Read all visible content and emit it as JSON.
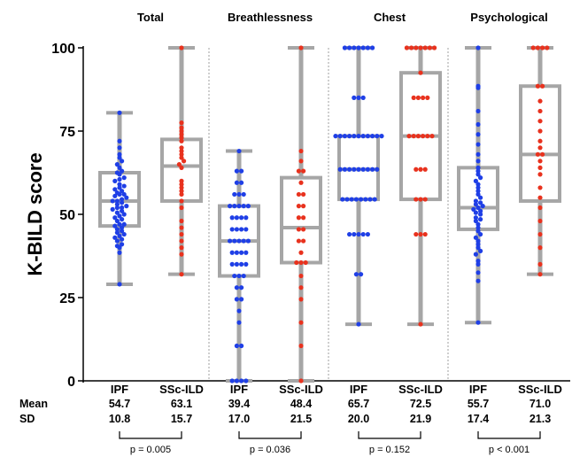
{
  "chart_data": {
    "type": "scatter",
    "subtype": "box-and-dot",
    "ylabel": "K-BILD score",
    "ylim": [
      0,
      100
    ],
    "yticks": [
      0,
      25,
      50,
      75,
      100
    ],
    "grid": false,
    "row_labels": {
      "mean": "Mean",
      "sd": "SD"
    },
    "colors": {
      "IPF": "#1f3fe6",
      "SSc-ILD": "#e8321e",
      "box": "#a6a6a6"
    },
    "panels": [
      {
        "title": "Total",
        "p_value": "p = 0.005",
        "groups": [
          {
            "name": "IPF",
            "box": {
              "min": 29,
              "q1": 46.5,
              "median": 54,
              "q3": 62.5,
              "max": 80.5
            },
            "mean": "54.7",
            "sd": "10.8",
            "points": [
              29,
              38.5,
              40,
              40.5,
              41,
              42,
              42.5,
              43,
              43.5,
              44,
              44.5,
              45,
              45.5,
              46,
              46.5,
              47,
              47,
              48,
              48.5,
              49,
              49.5,
              50,
              50.5,
              51,
              51.5,
              52,
              52,
              52.5,
              53,
              53.5,
              54,
              54,
              54.5,
              55,
              55.5,
              56,
              56,
              56.5,
              57,
              57.5,
              58,
              58.5,
              59,
              60,
              60.5,
              61,
              62,
              62.5,
              63,
              64,
              65,
              66,
              67,
              68,
              70,
              72,
              80.5
            ]
          },
          {
            "name": "SSc-ILD",
            "box": {
              "min": 32,
              "q1": 54,
              "median": 64.5,
              "q3": 72.5,
              "max": 100
            },
            "mean": "63.1",
            "sd": "15.7",
            "points": [
              32,
              38,
              40,
              42,
              44,
              46,
              48,
              52,
              54,
              56,
              57,
              58,
              59,
              60,
              64,
              65,
              66,
              67,
              68,
              69,
              70,
              72,
              73,
              74,
              75,
              76,
              77.5,
              100
            ]
          }
        ]
      },
      {
        "title": "Breathlessness",
        "p_value": "p = 0.036",
        "groups": [
          {
            "name": "IPF",
            "box": {
              "min": 0,
              "q1": 31.5,
              "median": 42,
              "q3": 52.5,
              "max": 69
            },
            "mean": "39.4",
            "sd": "17.0",
            "points": [
              0,
              0,
              0,
              0,
              10.5,
              10.5,
              17.5,
              21,
              24.5,
              24.5,
              28,
              28,
              31.5,
              31.5,
              31.5,
              35,
              35,
              35,
              35,
              38.5,
              38.5,
              38.5,
              38.5,
              42,
              42,
              42,
              42,
              42,
              45.5,
              45.5,
              45.5,
              45.5,
              49,
              49,
              49,
              49,
              52.5,
              52.5,
              52.5,
              52.5,
              52.5,
              56,
              56,
              56,
              59.5,
              59.5,
              63,
              63,
              69
            ]
          },
          {
            "name": "SSc-ILD",
            "box": {
              "min": 0,
              "q1": 35.5,
              "median": 46,
              "q3": 61,
              "max": 100
            },
            "mean": "48.4",
            "sd": "21.5",
            "points": [
              0,
              10.5,
              17.5,
              24.5,
              28,
              31.5,
              35.5,
              35.5,
              35.5,
              38.5,
              42,
              42,
              45.5,
              45.5,
              49,
              49,
              52.5,
              52.5,
              56,
              56,
              59.5,
              63,
              63,
              66,
              69,
              100
            ]
          }
        ]
      },
      {
        "title": "Chest",
        "p_value": "p = 0.152",
        "groups": [
          {
            "name": "IPF",
            "box": {
              "min": 17,
              "q1": 54.5,
              "median": 63.5,
              "q3": 73.5,
              "max": 100
            },
            "mean": "65.7",
            "sd": "20.0",
            "points": [
              17,
              32,
              32,
              44,
              44,
              44,
              44,
              44,
              54.5,
              54.5,
              54.5,
              54.5,
              54.5,
              54.5,
              54.5,
              54.5,
              63.5,
              63.5,
              63.5,
              63.5,
              63.5,
              63.5,
              63.5,
              63.5,
              63.5,
              73.5,
              73.5,
              73.5,
              73.5,
              73.5,
              73.5,
              73.5,
              73.5,
              73.5,
              73.5,
              73.5,
              85,
              85,
              85,
              100,
              100,
              100,
              100,
              100,
              100,
              100
            ]
          },
          {
            "name": "SSc-ILD",
            "box": {
              "min": 17,
              "q1": 54.5,
              "median": 73.5,
              "q3": 92.5,
              "max": 100
            },
            "mean": "72.5",
            "sd": "21.9",
            "points": [
              17,
              44,
              44,
              44,
              54.5,
              54.5,
              54.5,
              63.5,
              63.5,
              63.5,
              73.5,
              73.5,
              73.5,
              73.5,
              73.5,
              73.5,
              85,
              85,
              85,
              85,
              92.5,
              100,
              100,
              100,
              100,
              100,
              100,
              100
            ]
          }
        ]
      },
      {
        "title": "Psychological",
        "p_value": "p < 0.001",
        "groups": [
          {
            "name": "IPF",
            "box": {
              "min": 17.5,
              "q1": 45.5,
              "median": 52,
              "q3": 64,
              "max": 100
            },
            "mean": "55.7",
            "sd": "17.4",
            "points": [
              17.5,
              30,
              32.5,
              35,
              36,
              38,
              39,
              40,
              41,
              42,
              43,
              44,
              45,
              46,
              47,
              48,
              48.5,
              49,
              50,
              50.5,
              51,
              51.5,
              52,
              52.5,
              53,
              53.5,
              54,
              55,
              56,
              57,
              58,
              59,
              60,
              61,
              62,
              63,
              64,
              66,
              68,
              71,
              74,
              77,
              81,
              88,
              88.5,
              100
            ]
          },
          {
            "name": "SSc-ILD",
            "box": {
              "min": 32,
              "q1": 54,
              "median": 68,
              "q3": 88.5,
              "max": 100
            },
            "mean": "71.0",
            "sd": "21.3",
            "points": [
              32,
              35,
              40,
              44,
              48,
              52,
              55,
              58,
              62,
              64,
              66,
              68,
              68,
              70,
              72,
              75,
              78,
              81,
              84,
              88.5,
              88.5,
              100,
              100,
              100,
              100
            ]
          }
        ]
      }
    ]
  }
}
